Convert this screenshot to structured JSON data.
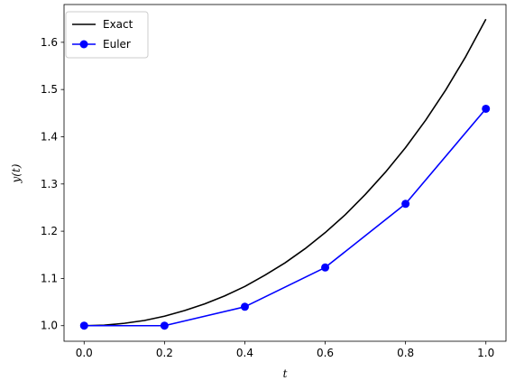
{
  "chart_data": {
    "type": "line",
    "xlabel": "t",
    "ylabel": "y(t)",
    "xlim": [
      -0.05,
      1.05
    ],
    "ylim": [
      0.967,
      1.68
    ],
    "grid": false,
    "legend_position": "top-left",
    "x_ticks": [
      "0.0",
      "0.2",
      "0.4",
      "0.6",
      "0.8",
      "1.0"
    ],
    "y_ticks": [
      "1.0",
      "1.1",
      "1.2",
      "1.3",
      "1.4",
      "1.5",
      "1.6"
    ],
    "series": [
      {
        "name": "Exact",
        "color": "#000000",
        "style": "line",
        "x": [
          0.0,
          0.05,
          0.1,
          0.15,
          0.2,
          0.25,
          0.3,
          0.35,
          0.4,
          0.45,
          0.5,
          0.55,
          0.6,
          0.65,
          0.7,
          0.75,
          0.8,
          0.85,
          0.9,
          0.95,
          1.0
        ],
        "values": [
          1.0,
          1.001,
          1.005,
          1.011,
          1.02,
          1.032,
          1.046,
          1.063,
          1.083,
          1.107,
          1.133,
          1.163,
          1.197,
          1.235,
          1.278,
          1.325,
          1.377,
          1.435,
          1.499,
          1.57,
          1.649
        ]
      },
      {
        "name": "Euler",
        "color": "#0000ff",
        "style": "line-marker",
        "x": [
          0.0,
          0.2,
          0.4,
          0.6,
          0.8,
          1.0
        ],
        "values": [
          1.0,
          1.0,
          1.04,
          1.1232,
          1.258,
          1.4593
        ]
      }
    ]
  }
}
